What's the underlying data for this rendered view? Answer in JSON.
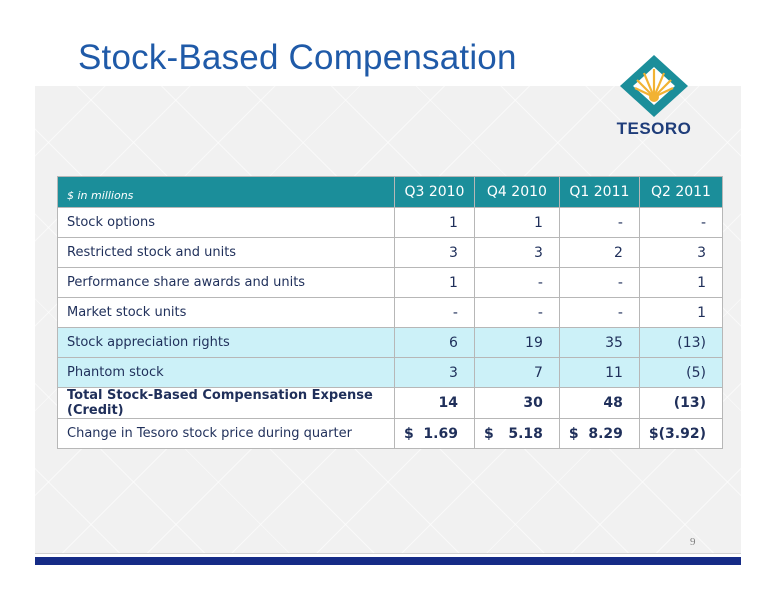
{
  "slide": {
    "title": "Stock-Based Compensation",
    "page_number": "9"
  },
  "logo": {
    "text": "TESORO",
    "colors": {
      "teal": "#1b8e9a",
      "gold": "#f2b233",
      "navy": "#1f3d7a"
    }
  },
  "table": {
    "label_header": "$ in millions",
    "columns": [
      "Q3 2010",
      "Q4 2010",
      "Q1 2011",
      "Q2 2011"
    ],
    "rows": [
      {
        "label": "Stock options",
        "values": [
          "1",
          "1",
          "-",
          "-"
        ]
      },
      {
        "label": "Restricted stock and units",
        "values": [
          "3",
          "3",
          "2",
          "3"
        ]
      },
      {
        "label": "Performance share awards and units",
        "values": [
          "1",
          "-",
          "-",
          "1"
        ]
      },
      {
        "label": "Market stock units",
        "values": [
          "-",
          "-",
          "-",
          "1"
        ]
      },
      {
        "label": "Stock appreciation rights",
        "values": [
          "6",
          "19",
          "35",
          "(13)"
        ]
      },
      {
        "label": "Phantom stock",
        "values": [
          "3",
          "7",
          "11",
          "(5)"
        ]
      },
      {
        "label": "Total Stock-Based Compensation Expense (Credit)",
        "values": [
          "14",
          "30",
          "48",
          "(13)"
        ]
      },
      {
        "label": "Change in Tesoro stock price during quarter",
        "values": [
          "$  1.69",
          "$   5.18",
          "$  8.29",
          "$(3.92)"
        ]
      }
    ],
    "colors": {
      "header": "#1b8e9a",
      "highlight_rows": "#ccf1f8"
    }
  }
}
